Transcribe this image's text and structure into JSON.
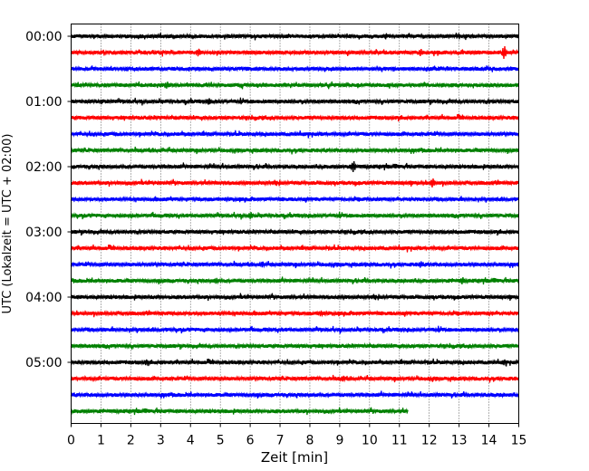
{
  "chart_data": {
    "type": "line",
    "title": "",
    "xlabel": "Zeit  [min]",
    "ylabel": "UTC (Lokalzeit = UTC + 02:00)",
    "xlim": [
      0,
      15
    ],
    "x_ticks": [
      "0",
      "1",
      "2",
      "3",
      "4",
      "5",
      "6",
      "7",
      "8",
      "9",
      "10",
      "11",
      "12",
      "13",
      "14",
      "15"
    ],
    "y_ticks": [
      "00:00",
      "01:00",
      "02:00",
      "03:00",
      "04:00",
      "05:00"
    ],
    "grid": "vertical dotted",
    "line_minutes": 15,
    "trace_colors": [
      "#000000",
      "#ff0000",
      "#0000ff",
      "#008000"
    ],
    "series": [
      {
        "start": "00:00",
        "end_min": 15
      },
      {
        "start": "00:15",
        "end_min": 15
      },
      {
        "start": "00:30",
        "end_min": 15
      },
      {
        "start": "00:45",
        "end_min": 15
      },
      {
        "start": "01:00",
        "end_min": 15
      },
      {
        "start": "01:15",
        "end_min": 15
      },
      {
        "start": "01:30",
        "end_min": 15
      },
      {
        "start": "01:45",
        "end_min": 15
      },
      {
        "start": "02:00",
        "end_min": 15
      },
      {
        "start": "02:15",
        "end_min": 15
      },
      {
        "start": "02:30",
        "end_min": 15
      },
      {
        "start": "02:45",
        "end_min": 15
      },
      {
        "start": "03:00",
        "end_min": 15
      },
      {
        "start": "03:15",
        "end_min": 15
      },
      {
        "start": "03:30",
        "end_min": 15
      },
      {
        "start": "03:45",
        "end_min": 15
      },
      {
        "start": "04:00",
        "end_min": 15
      },
      {
        "start": "04:15",
        "end_min": 15
      },
      {
        "start": "04:30",
        "end_min": 15
      },
      {
        "start": "04:45",
        "end_min": 15
      },
      {
        "start": "05:00",
        "end_min": 15
      },
      {
        "start": "05:15",
        "end_min": 15
      },
      {
        "start": "05:30",
        "end_min": 15
      },
      {
        "start": "05:45",
        "end_min": 11.3
      }
    ],
    "events": [
      {
        "line": 1,
        "x": 14.5,
        "amp": 1.0
      },
      {
        "line": 1,
        "x": 4.25,
        "amp": 0.6
      },
      {
        "line": 1,
        "x": 11.7,
        "amp": 0.55
      },
      {
        "line": 3,
        "x": 3.2,
        "amp": 0.55
      },
      {
        "line": 4,
        "x": 4.6,
        "amp": 0.5
      },
      {
        "line": 8,
        "x": 9.45,
        "amp": 0.85
      },
      {
        "line": 9,
        "x": 12.1,
        "amp": 0.7
      },
      {
        "line": 11,
        "x": 6.0,
        "amp": 0.55
      },
      {
        "line": 14,
        "x": 6.4,
        "amp": 0.45
      },
      {
        "line": 14,
        "x": 11.7,
        "amp": 0.5
      },
      {
        "line": 15,
        "x": 4.85,
        "amp": 0.45
      },
      {
        "line": 15,
        "x": 13.1,
        "amp": 0.55
      },
      {
        "line": 17,
        "x": 8.35,
        "amp": 0.45
      },
      {
        "line": 20,
        "x": 2.5,
        "amp": 0.45
      },
      {
        "line": 20,
        "x": 14.5,
        "amp": 0.45
      },
      {
        "line": 21,
        "x": 9.1,
        "amp": 0.45
      }
    ]
  }
}
